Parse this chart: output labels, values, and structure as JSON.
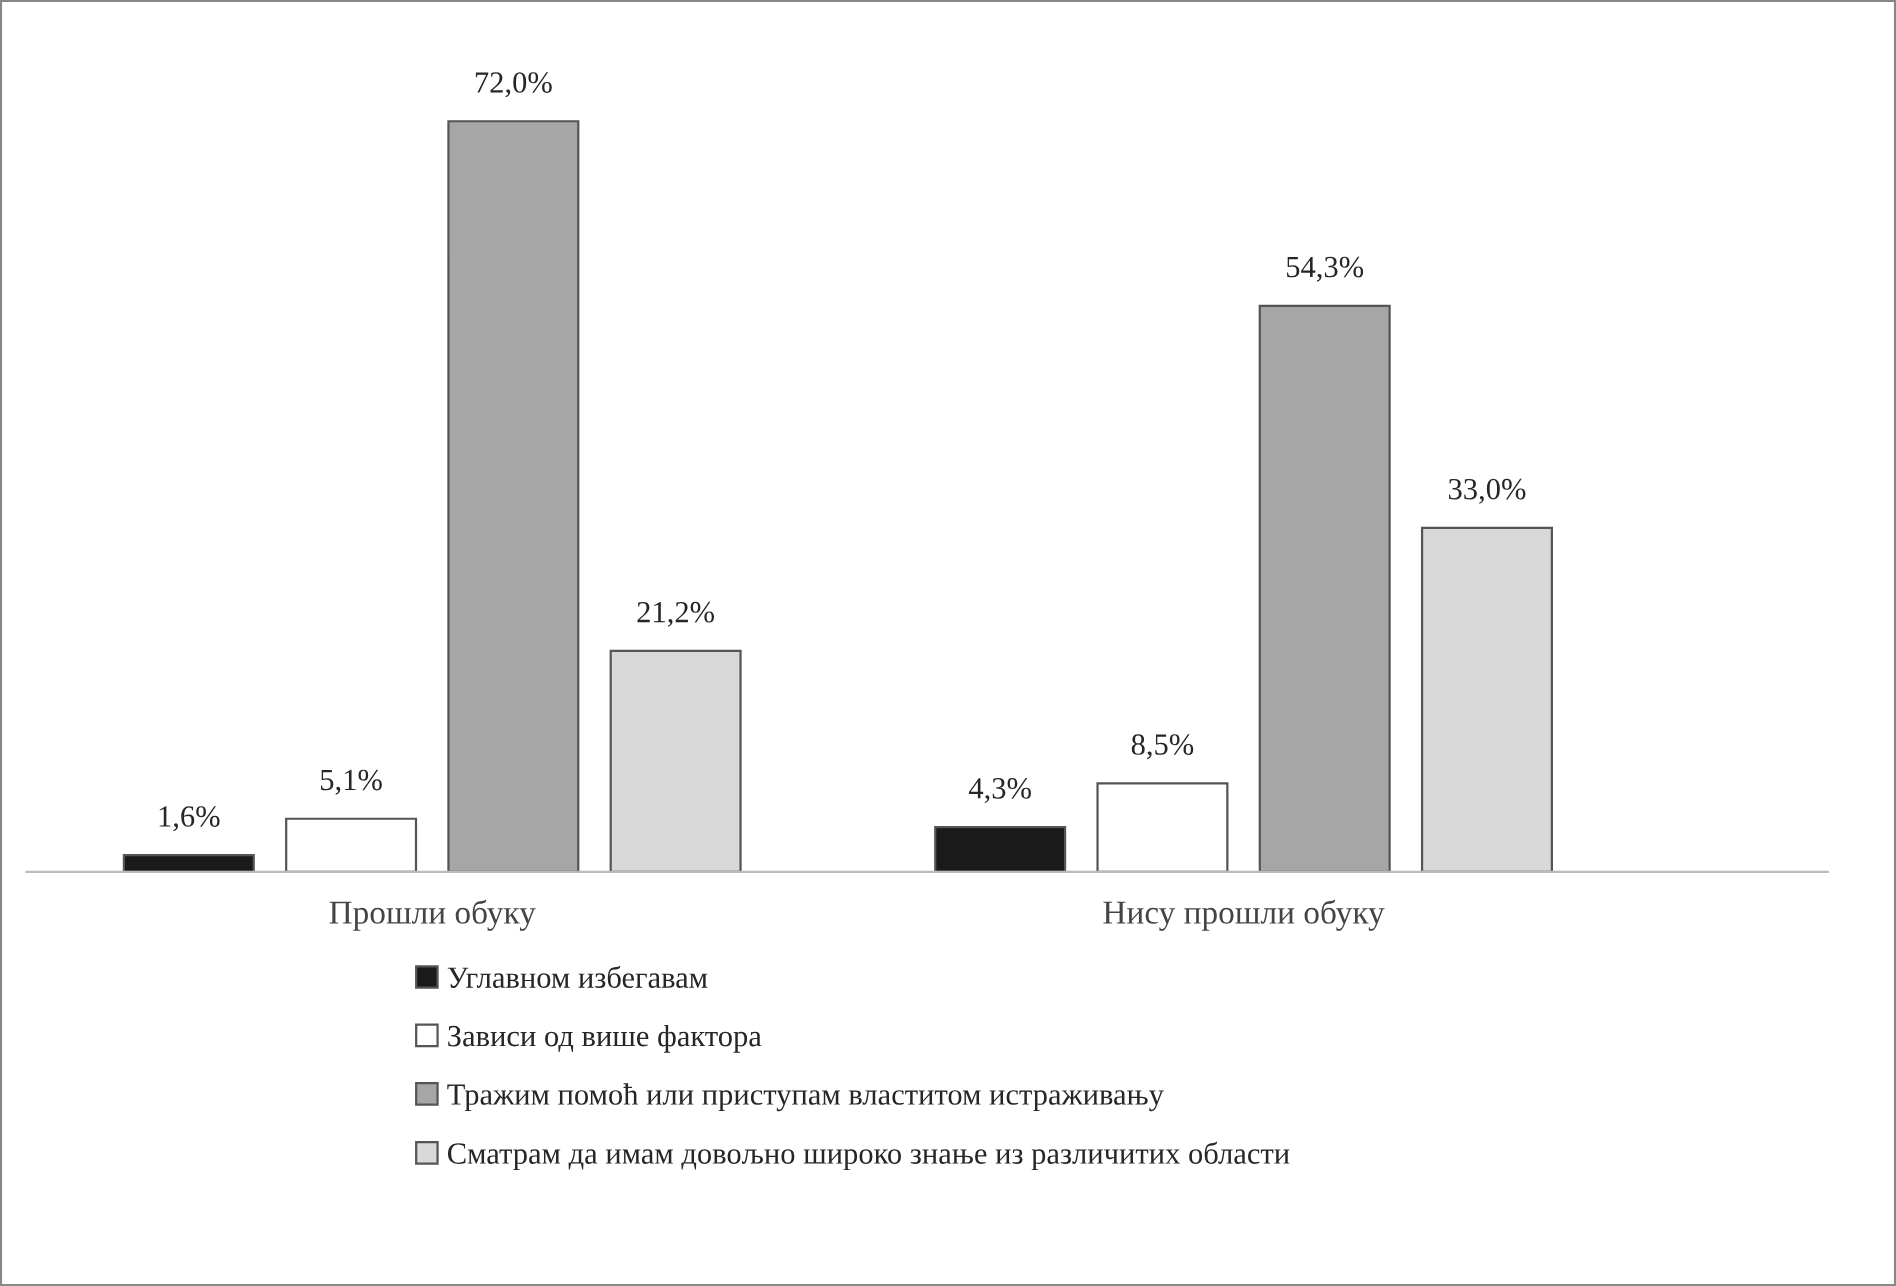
{
  "chart_data": {
    "type": "bar",
    "categories": [
      "Прошли обуку",
      "Нису прошли обуку"
    ],
    "series": [
      {
        "name": "Углавном избегавам",
        "color": "#1a1a1a",
        "values": [
          1.6,
          4.3
        ],
        "value_labels": [
          "1,6%",
          "4,3%"
        ]
      },
      {
        "name": "Зависи од више фактора",
        "color": "#ffffff",
        "values": [
          5.1,
          8.5
        ],
        "value_labels": [
          "5,1%",
          "8,5%"
        ]
      },
      {
        "name": "Тражим помоћ или приступам властитом истраживању",
        "color": "#a6a6a6",
        "values": [
          72.0,
          54.3
        ],
        "value_labels": [
          "72,0%",
          "54,3%"
        ]
      },
      {
        "name": "Сматрам да имам довољно широко знање из различитих области",
        "color": "#d9d9d9",
        "values": [
          21.2,
          33.0
        ],
        "value_labels": [
          "21,2%",
          "33,0%"
        ]
      }
    ],
    "legend": "bottom",
    "grid": false
  }
}
